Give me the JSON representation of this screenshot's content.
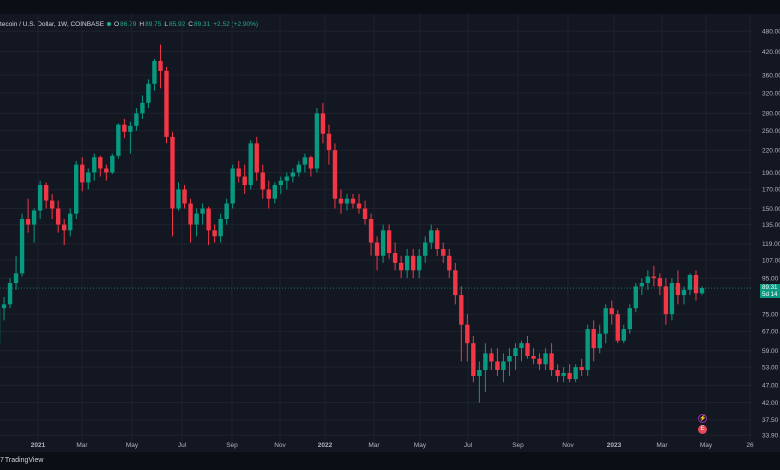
{
  "header": {
    "title": "tecoin / U.S. Dollar, 1W, COINBASE",
    "o_key": "O",
    "o_val": "86.79",
    "h_key": "H",
    "h_val": "89.75",
    "l_key": "L",
    "l_val": "85.92",
    "c_key": "C",
    "c_val": "89.31",
    "change": "+2.52 (+2.90%)"
  },
  "price_tag": {
    "price": "89.31",
    "countdown": "5d 14"
  },
  "brand": {
    "logo": "7",
    "name": "TradingView"
  },
  "events": {
    "dividend_glyph": "⚡",
    "earnings_glyph": "E"
  },
  "chart_data": {
    "type": "candlestick",
    "y_scale": "log",
    "y_ticks": [
      "480.00",
      "420.00",
      "360.00",
      "320.00",
      "280.00",
      "250.00",
      "220.00",
      "190.00",
      "170.00",
      "150.00",
      "135.00",
      "119.00",
      "107.00",
      "95.00",
      "75.00",
      "67.00",
      "59.00",
      "53.00",
      "47.00",
      "42.00",
      "37.50",
      "33.90"
    ],
    "x_ticks": [
      "2021",
      "Mar",
      "May",
      "Jul",
      "Sep",
      "Nov",
      "2022",
      "Mar",
      "May",
      "Jul",
      "Sep",
      "Nov",
      "2023",
      "Mar",
      "May",
      "26"
    ],
    "colors": {
      "up": "#089981",
      "down": "#f23645",
      "last": "#22ab94"
    },
    "candles": [
      [
        62,
        80,
        58,
        78
      ],
      [
        78,
        84,
        72,
        80
      ],
      [
        80,
        95,
        78,
        92
      ],
      [
        92,
        110,
        88,
        98
      ],
      [
        98,
        145,
        96,
        140
      ],
      [
        140,
        160,
        128,
        135
      ],
      [
        135,
        150,
        120,
        148
      ],
      [
        148,
        180,
        140,
        175
      ],
      [
        175,
        178,
        150,
        158
      ],
      [
        158,
        165,
        140,
        150
      ],
      [
        150,
        158,
        128,
        135
      ],
      [
        135,
        140,
        118,
        130
      ],
      [
        130,
        150,
        125,
        145
      ],
      [
        145,
        205,
        140,
        200
      ],
      [
        200,
        210,
        168,
        178
      ],
      [
        178,
        195,
        170,
        190
      ],
      [
        190,
        215,
        180,
        210
      ],
      [
        210,
        212,
        185,
        195
      ],
      [
        195,
        200,
        180,
        190
      ],
      [
        190,
        215,
        188,
        212
      ],
      [
        212,
        262,
        208,
        260
      ],
      [
        260,
        270,
        238,
        248
      ],
      [
        248,
        265,
        215,
        258
      ],
      [
        258,
        290,
        250,
        280
      ],
      [
        280,
        315,
        270,
        300
      ],
      [
        300,
        350,
        290,
        340
      ],
      [
        340,
        400,
        325,
        395
      ],
      [
        395,
        440,
        330,
        370
      ],
      [
        370,
        380,
        230,
        240
      ],
      [
        240,
        248,
        125,
        150
      ],
      [
        150,
        178,
        148,
        170
      ],
      [
        170,
        175,
        150,
        155
      ],
      [
        155,
        160,
        120,
        135
      ],
      [
        135,
        150,
        125,
        145
      ],
      [
        145,
        155,
        135,
        150
      ],
      [
        150,
        152,
        118,
        130
      ],
      [
        130,
        135,
        120,
        125
      ],
      [
        125,
        145,
        120,
        140
      ],
      [
        140,
        160,
        135,
        155
      ],
      [
        155,
        200,
        150,
        195
      ],
      [
        195,
        205,
        178,
        185
      ],
      [
        185,
        200,
        165,
        175
      ],
      [
        175,
        235,
        170,
        230
      ],
      [
        230,
        240,
        180,
        190
      ],
      [
        190,
        200,
        160,
        170
      ],
      [
        170,
        180,
        150,
        160
      ],
      [
        160,
        178,
        155,
        175
      ],
      [
        175,
        185,
        165,
        180
      ],
      [
        180,
        190,
        170,
        185
      ],
      [
        185,
        195,
        178,
        190
      ],
      [
        190,
        205,
        185,
        200
      ],
      [
        200,
        215,
        190,
        210
      ],
      [
        210,
        212,
        185,
        195
      ],
      [
        195,
        290,
        190,
        280
      ],
      [
        280,
        300,
        230,
        245
      ],
      [
        245,
        260,
        200,
        220
      ],
      [
        220,
        230,
        150,
        160
      ],
      [
        160,
        170,
        145,
        155
      ],
      [
        155,
        165,
        148,
        160
      ],
      [
        160,
        165,
        150,
        155
      ],
      [
        155,
        165,
        145,
        150
      ],
      [
        150,
        158,
        135,
        140
      ],
      [
        140,
        145,
        110,
        120
      ],
      [
        120,
        125,
        100,
        110
      ],
      [
        110,
        135,
        105,
        130
      ],
      [
        130,
        135,
        108,
        112
      ],
      [
        112,
        120,
        100,
        105
      ],
      [
        105,
        110,
        95,
        100
      ],
      [
        100,
        115,
        95,
        110
      ],
      [
        110,
        115,
        95,
        100
      ],
      [
        100,
        115,
        95,
        110
      ],
      [
        110,
        125,
        105,
        120
      ],
      [
        120,
        135,
        115,
        130
      ],
      [
        130,
        132,
        110,
        115
      ],
      [
        115,
        120,
        105,
        110
      ],
      [
        110,
        115,
        95,
        100
      ],
      [
        100,
        105,
        80,
        85
      ],
      [
        85,
        90,
        55,
        70
      ],
      [
        70,
        75,
        55,
        62
      ],
      [
        62,
        65,
        48,
        50
      ],
      [
        50,
        55,
        42,
        52
      ],
      [
        52,
        62,
        45,
        58
      ],
      [
        58,
        60,
        52,
        55
      ],
      [
        55,
        60,
        50,
        52
      ],
      [
        52,
        58,
        48,
        55
      ],
      [
        55,
        60,
        50,
        57
      ],
      [
        57,
        62,
        52,
        60
      ],
      [
        60,
        63,
        55,
        62
      ],
      [
        62,
        65,
        56,
        57
      ],
      [
        57,
        60,
        54,
        56
      ],
      [
        56,
        58,
        52,
        54
      ],
      [
        54,
        60,
        52,
        58
      ],
      [
        58,
        62,
        50,
        52
      ],
      [
        52,
        54,
        48,
        50
      ],
      [
        50,
        53,
        48,
        51
      ],
      [
        51,
        54,
        48,
        49
      ],
      [
        49,
        54,
        48,
        53
      ],
      [
        53,
        56,
        50,
        52
      ],
      [
        52,
        70,
        50,
        68
      ],
      [
        68,
        72,
        55,
        60
      ],
      [
        60,
        70,
        58,
        66
      ],
      [
        66,
        80,
        62,
        78
      ],
      [
        78,
        82,
        70,
        75
      ],
      [
        75,
        77,
        62,
        63
      ],
      [
        63,
        70,
        62,
        68
      ],
      [
        68,
        80,
        66,
        78
      ],
      [
        78,
        92,
        76,
        90
      ],
      [
        90,
        95,
        85,
        92
      ],
      [
        92,
        100,
        88,
        96
      ],
      [
        96,
        103,
        90,
        95
      ],
      [
        95,
        98,
        85,
        90
      ],
      [
        90,
        95,
        70,
        75
      ],
      [
        75,
        95,
        72,
        92
      ],
      [
        92,
        100,
        80,
        85
      ],
      [
        85,
        90,
        80,
        88
      ],
      [
        88,
        98,
        85,
        97
      ],
      [
        97,
        100,
        82,
        86
      ],
      [
        86,
        90,
        85,
        89
      ]
    ]
  }
}
